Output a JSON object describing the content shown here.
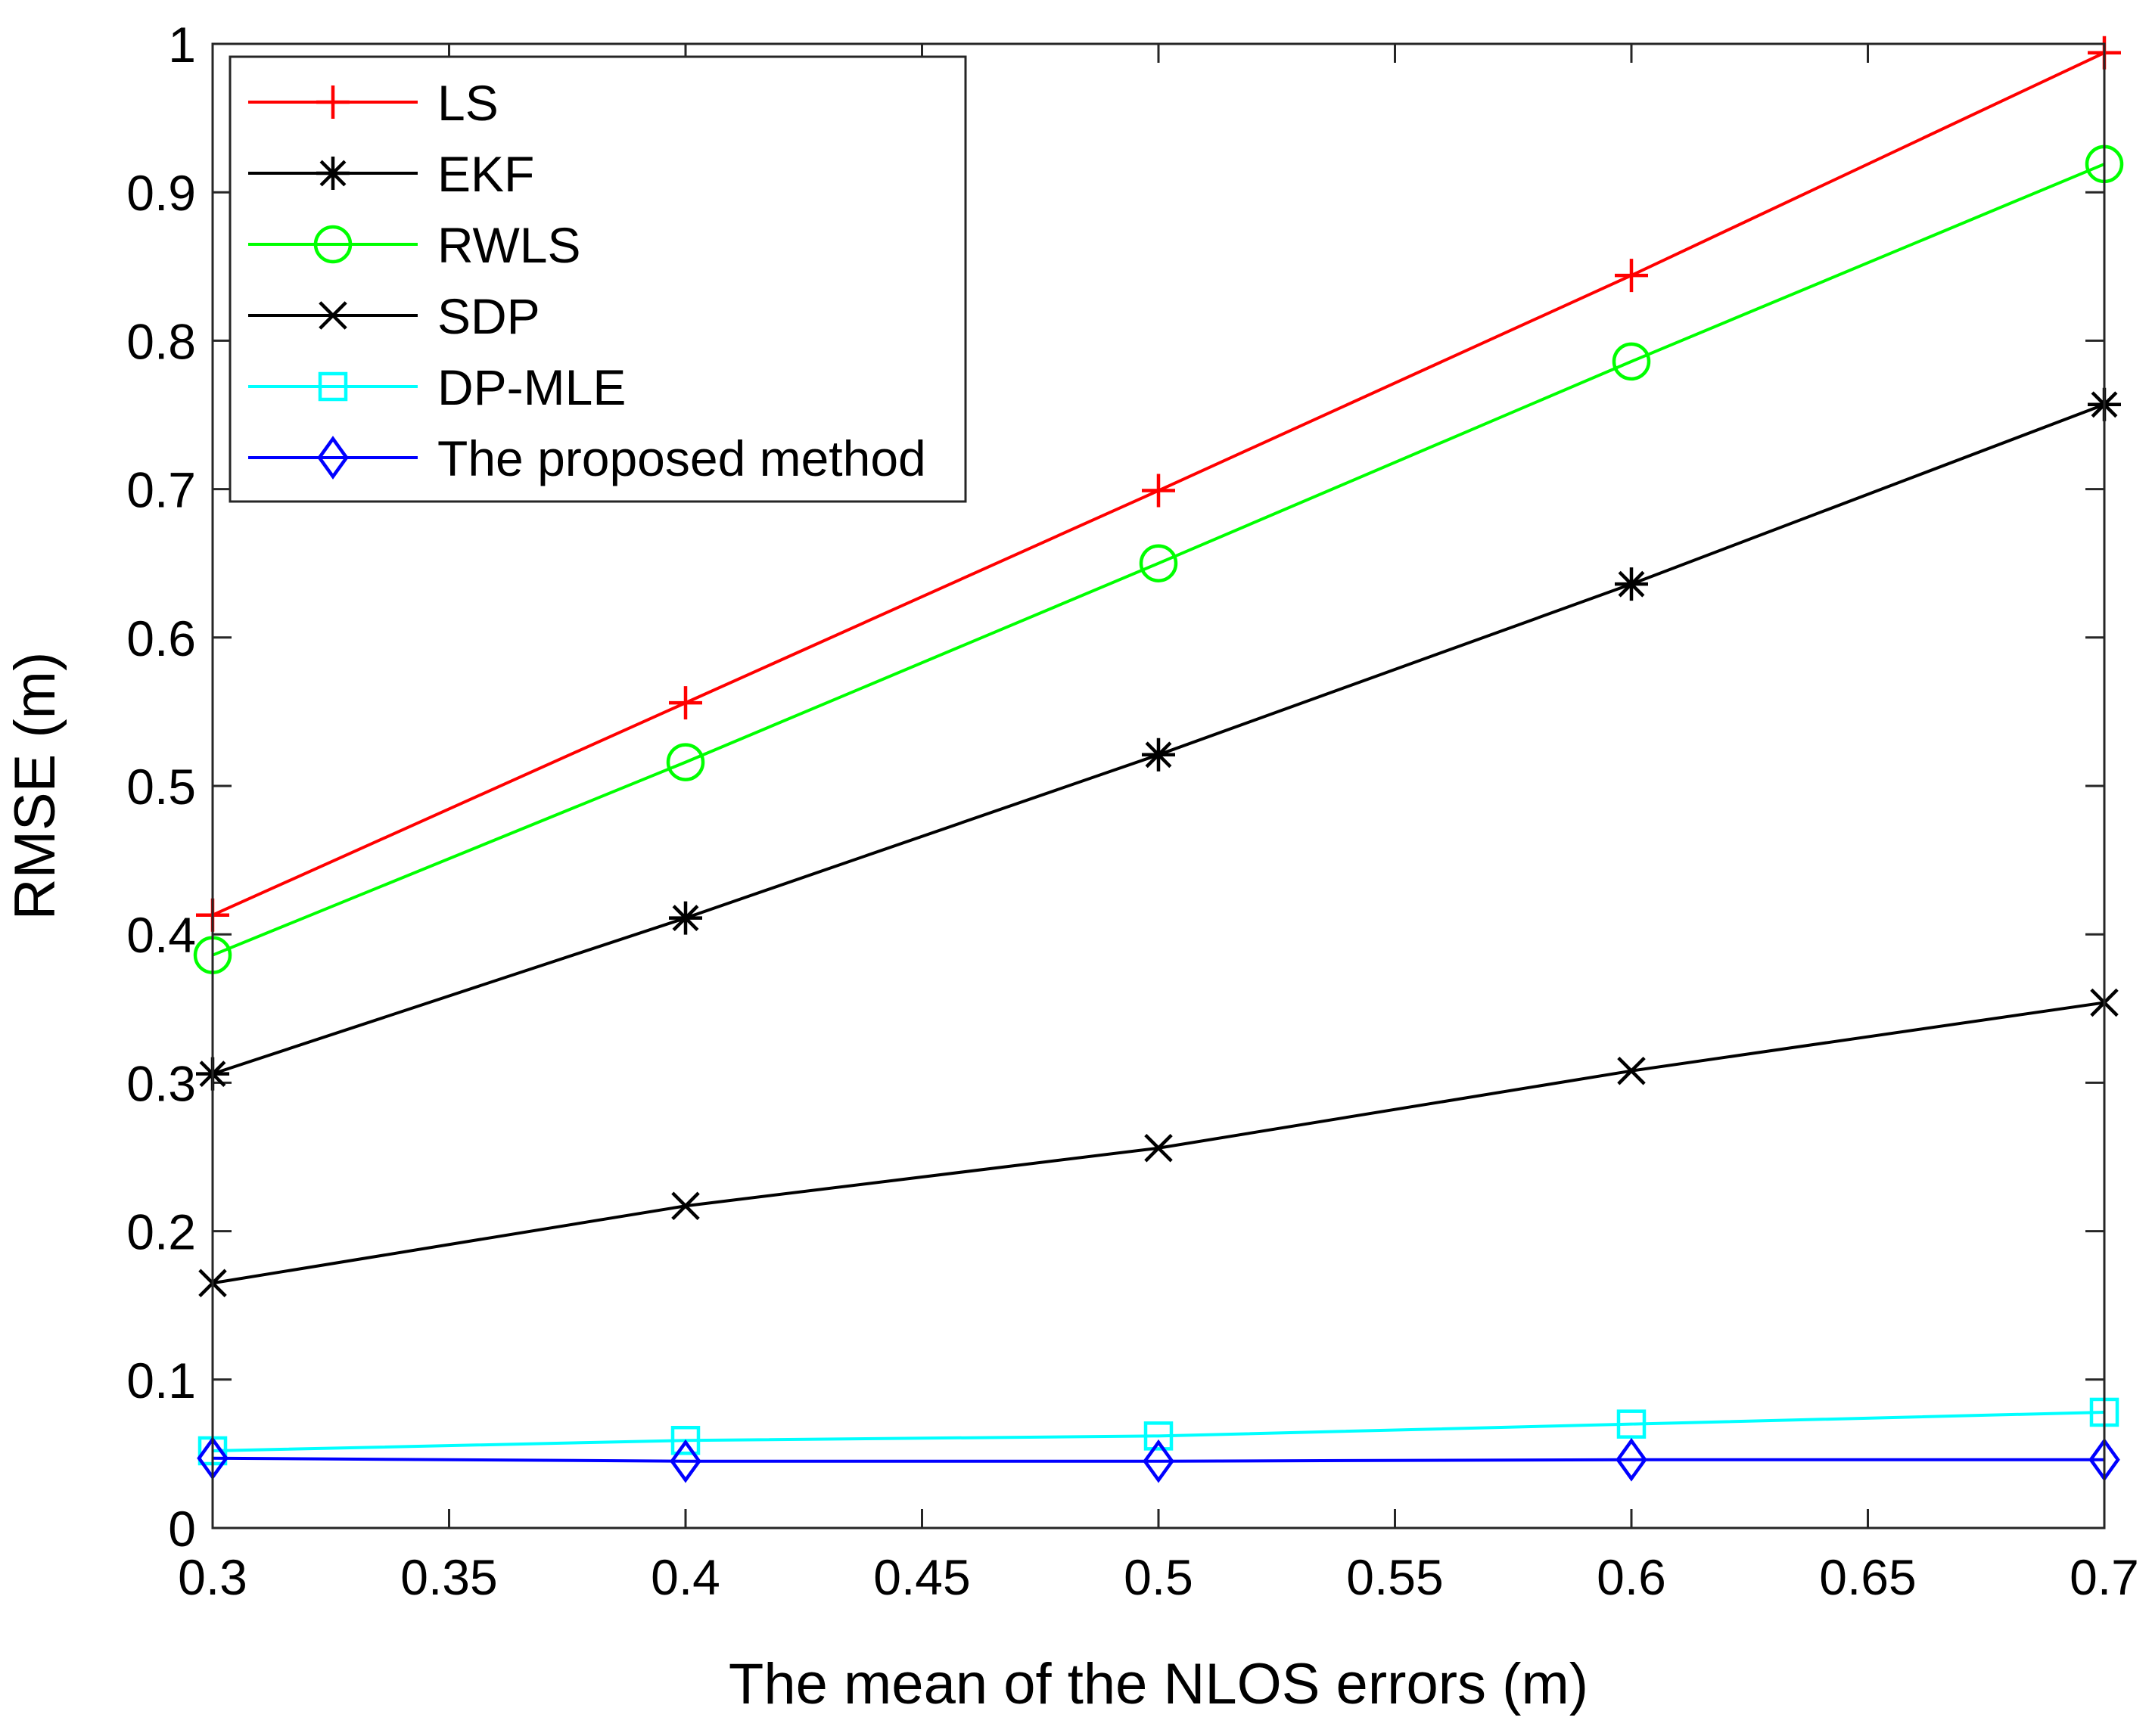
{
  "chart_data": {
    "type": "line",
    "title": "",
    "xlabel": "The mean of the NLOS errors (m)",
    "ylabel": "RMSE (m)",
    "xlim": [
      0.3,
      0.7
    ],
    "ylim": [
      0,
      1
    ],
    "xticks": [
      "0.3",
      "0.35",
      "0.4",
      "0.45",
      "0.5",
      "0.55",
      "0.6",
      "0.65",
      "0.7"
    ],
    "yticks": [
      "0",
      "0.1",
      "0.2",
      "0.3",
      "0.4",
      "0.5",
      "0.6",
      "0.7",
      "0.8",
      "0.9",
      "1"
    ],
    "grid": false,
    "legend_position": "top-left",
    "x": [
      0.3,
      0.4,
      0.5,
      0.6,
      0.7
    ],
    "series": [
      {
        "name": "LS",
        "color": "#ff0000",
        "marker": "plus",
        "values": [
          0.413,
          0.556,
          0.699,
          0.844,
          0.994
        ]
      },
      {
        "name": "EKF",
        "color": "#000000",
        "marker": "asterisk",
        "values": [
          0.306,
          0.411,
          0.521,
          0.636,
          0.757
        ]
      },
      {
        "name": "RWLS",
        "color": "#00ff00",
        "marker": "circle",
        "values": [
          0.386,
          0.516,
          0.65,
          0.786,
          0.919
        ]
      },
      {
        "name": "SDP",
        "color": "#000000",
        "marker": "x",
        "values": [
          0.165,
          0.217,
          0.256,
          0.308,
          0.354
        ]
      },
      {
        "name": "DP-MLE",
        "color": "#00ffff",
        "marker": "square",
        "values": [
          0.052,
          0.059,
          0.062,
          0.07,
          0.078
        ]
      },
      {
        "name": "The proposed method",
        "color": "#0000ff",
        "marker": "diamond",
        "values": [
          0.047,
          0.045,
          0.045,
          0.046,
          0.046
        ]
      }
    ]
  }
}
